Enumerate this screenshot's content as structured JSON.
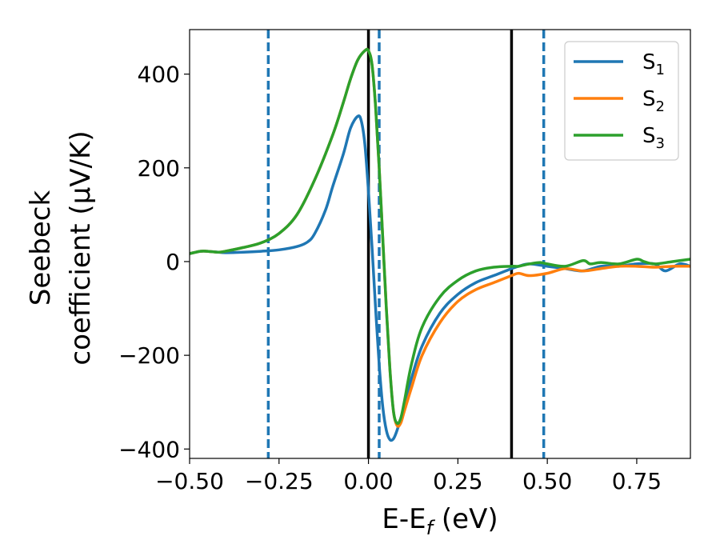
{
  "chart_data": {
    "type": "line",
    "xlabel": "E-E",
    "xlabel_sub": "f",
    "xlabel_unit": "(eV)",
    "ylabel_line1": "Seebeck",
    "ylabel_line2": "coefficient  (μV/K)",
    "xlim": [
      -0.5,
      0.9
    ],
    "ylim": [
      -420,
      495
    ],
    "xticks": [
      -0.5,
      -0.25,
      0.0,
      0.25,
      0.5,
      0.75
    ],
    "xtick_labels": [
      "−0.50",
      "−0.25",
      "0.00",
      "0.25",
      "0.50",
      "0.75"
    ],
    "yticks": [
      -400,
      -200,
      0,
      200,
      400
    ],
    "ytick_labels": [
      "−400",
      "−200",
      "0",
      "200",
      "400"
    ],
    "grid": false,
    "legend_position": "top-right",
    "vlines_solid": [
      0.0,
      0.4
    ],
    "vlines_dashed": [
      -0.28,
      0.03,
      0.49
    ],
    "series": [
      {
        "name": "S",
        "sub": "1",
        "color": "#1f77b4",
        "x": [
          -0.5,
          -0.47,
          -0.45,
          -0.42,
          -0.4,
          -0.35,
          -0.3,
          -0.25,
          -0.2,
          -0.17,
          -0.15,
          -0.12,
          -0.1,
          -0.07,
          -0.05,
          -0.03,
          -0.02,
          -0.01,
          0.0,
          0.01,
          0.02,
          0.03,
          0.04,
          0.05,
          0.06,
          0.07,
          0.08,
          0.1,
          0.12,
          0.15,
          0.2,
          0.25,
          0.3,
          0.35,
          0.4,
          0.42,
          0.45,
          0.5,
          0.55,
          0.6,
          0.65,
          0.7,
          0.75,
          0.8,
          0.83,
          0.87,
          0.9
        ],
        "y": [
          17,
          22,
          22,
          20,
          19,
          20,
          22,
          25,
          32,
          42,
          60,
          110,
          160,
          230,
          285,
          310,
          300,
          250,
          150,
          30,
          -100,
          -220,
          -310,
          -360,
          -380,
          -378,
          -360,
          -310,
          -250,
          -180,
          -110,
          -70,
          -45,
          -30,
          -15,
          -10,
          -5,
          -10,
          -15,
          -20,
          -10,
          -10,
          -5,
          -5,
          -20,
          -5,
          -10
        ]
      },
      {
        "name": "S",
        "sub": "2",
        "color": "#ff7f0e",
        "x": [
          -0.5,
          -0.47,
          -0.45,
          -0.42,
          -0.4,
          -0.35,
          -0.3,
          -0.25,
          -0.2,
          -0.15,
          -0.1,
          -0.07,
          -0.05,
          -0.03,
          -0.01,
          0.0,
          0.01,
          0.02,
          0.03,
          0.04,
          0.05,
          0.06,
          0.07,
          0.08,
          0.09,
          0.1,
          0.12,
          0.15,
          0.2,
          0.25,
          0.3,
          0.35,
          0.4,
          0.42,
          0.45,
          0.5,
          0.55,
          0.6,
          0.65,
          0.7,
          0.75,
          0.8,
          0.85,
          0.9
        ],
        "y": [
          17,
          22,
          22,
          20,
          22,
          30,
          40,
          60,
          100,
          175,
          270,
          340,
          390,
          430,
          450,
          450,
          420,
          330,
          200,
          50,
          -100,
          -230,
          -320,
          -350,
          -345,
          -320,
          -270,
          -200,
          -130,
          -85,
          -60,
          -45,
          -30,
          -25,
          -30,
          -25,
          -15,
          -20,
          -15,
          -10,
          -10,
          -12,
          -10,
          -10
        ]
      },
      {
        "name": "S",
        "sub": "3",
        "color": "#2ca02c",
        "x": [
          -0.5,
          -0.47,
          -0.45,
          -0.42,
          -0.4,
          -0.35,
          -0.3,
          -0.25,
          -0.2,
          -0.15,
          -0.1,
          -0.07,
          -0.05,
          -0.03,
          -0.01,
          0.0,
          0.01,
          0.02,
          0.03,
          0.04,
          0.05,
          0.06,
          0.07,
          0.08,
          0.09,
          0.1,
          0.12,
          0.15,
          0.2,
          0.25,
          0.3,
          0.35,
          0.4,
          0.42,
          0.45,
          0.48,
          0.5,
          0.55,
          0.6,
          0.62,
          0.65,
          0.7,
          0.75,
          0.77,
          0.8,
          0.85,
          0.9
        ],
        "y": [
          17,
          22,
          22,
          20,
          22,
          30,
          40,
          60,
          100,
          175,
          270,
          340,
          390,
          430,
          450,
          450,
          420,
          330,
          200,
          50,
          -100,
          -230,
          -320,
          -345,
          -335,
          -300,
          -220,
          -140,
          -75,
          -40,
          -20,
          -12,
          -10,
          -10,
          -5,
          -2,
          -5,
          -10,
          2,
          -5,
          -2,
          -5,
          5,
          0,
          -5,
          0,
          5
        ]
      }
    ]
  }
}
